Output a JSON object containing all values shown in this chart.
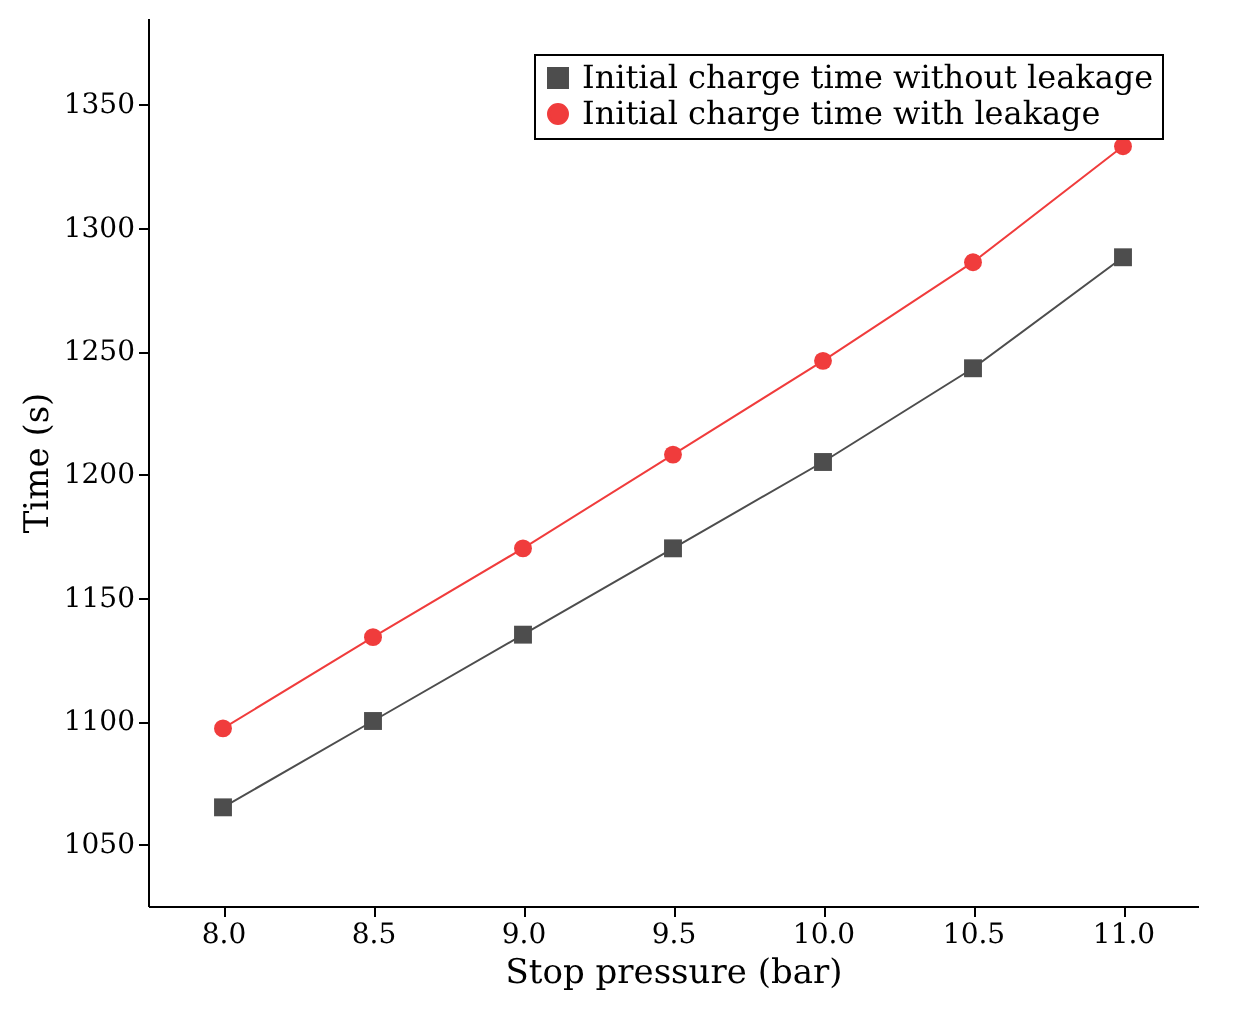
{
  "chart_data": {
    "type": "line",
    "xlabel": "Stop pressure (bar)",
    "ylabel": "Time (s)",
    "x": [
      8.0,
      8.5,
      9.0,
      9.5,
      10.0,
      10.5,
      11.0
    ],
    "xlim": [
      7.75,
      11.25
    ],
    "xticks": [
      {
        "value": 8,
        "label": "8.0"
      },
      {
        "value": 8.5,
        "label": "8.5"
      },
      {
        "value": 9,
        "label": "9.0"
      },
      {
        "value": 9.5,
        "label": "9.5"
      },
      {
        "value": 10,
        "label": "10.0"
      },
      {
        "value": 10.5,
        "label": "10.5"
      },
      {
        "value": 11,
        "label": "11.0"
      }
    ],
    "ylim": [
      1025,
      1385
    ],
    "yticks": [
      1050,
      1100,
      1150,
      1200,
      1250,
      1300,
      1350
    ],
    "legend": "top right",
    "series": [
      {
        "name": "Initial charge time without leakage",
        "color": "#4d4d4d",
        "marker": "square",
        "values": [
          1065,
          1100,
          1135,
          1170,
          1205,
          1243,
          1288
        ]
      },
      {
        "name": "Initial charge time with leakage",
        "color": "#f03c3c",
        "marker": "circle",
        "values": [
          1097,
          1134,
          1170,
          1208,
          1246,
          1286,
          1333
        ]
      }
    ]
  }
}
